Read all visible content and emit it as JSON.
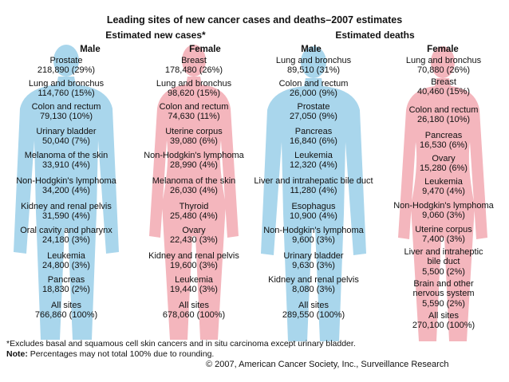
{
  "title": "Leading sites of new cancer cases and deaths–2007 estimates",
  "new_cases_heading": "Estimated new cases*",
  "deaths_heading": "Estimated deaths",
  "male_label": "Male",
  "female_label": "Female",
  "colors": {
    "male_figure": "#a9d6ec",
    "female_figure": "#f4b6bd"
  },
  "new_cases": {
    "male": [
      {
        "site": "Prostate",
        "value": "218,890 (29%)"
      },
      {
        "site": "Lung and bronchus",
        "value": "114,760 (15%)"
      },
      {
        "site": "Colon and rectum",
        "value": "79,130 (10%)"
      },
      {
        "site": "Urinary bladder",
        "value": "50,040 (7%)"
      },
      {
        "site": "Melanoma of the skin",
        "value": "33,910 (4%)"
      },
      {
        "site": "Non-Hodgkin's lymphoma",
        "value": "34,200 (4%)"
      },
      {
        "site": "Kidney and renal pelvis",
        "value": "31,590 (4%)"
      },
      {
        "site": "Oral cavity and pharynx",
        "value": "24,180 (3%)"
      },
      {
        "site": "Leukemia",
        "value": "24,800 (3%)"
      },
      {
        "site": "Pancreas",
        "value": "18,830 (2%)"
      },
      {
        "site": "All sites",
        "value": "766,860 (100%)"
      }
    ],
    "female": [
      {
        "site": "Breast",
        "value": "178,480 (26%)"
      },
      {
        "site": "Lung and bronchus",
        "value": "98,620 (15%)"
      },
      {
        "site": "Colon and rectum",
        "value": "74,630 (11%)"
      },
      {
        "site": "Uterine corpus",
        "value": "39,080 (6%)"
      },
      {
        "site": "Non-Hodgkin's lymphoma",
        "value": "28,990 (4%)"
      },
      {
        "site": "Melanoma of the skin",
        "value": "26,030 (4%)"
      },
      {
        "site": "Thyroid",
        "value": "25,480 (4%)"
      },
      {
        "site": "Ovary",
        "value": "22,430 (3%)"
      },
      {
        "site": "Kidney and renal pelvis",
        "value": "19,600 (3%)"
      },
      {
        "site": "Leukemia",
        "value": "19,440 (3%)"
      },
      {
        "site": "All sites",
        "value": "678,060 (100%)"
      }
    ]
  },
  "deaths": {
    "male": [
      {
        "site": "Lung and bronchus",
        "value": "89,510 (31%)"
      },
      {
        "site": "Colon and rectum",
        "value": "26,000 (9%)"
      },
      {
        "site": "Prostate",
        "value": "27,050 (9%)"
      },
      {
        "site": "Pancreas",
        "value": "16,840 (6%)"
      },
      {
        "site": "Leukemia",
        "value": "12,320 (4%)"
      },
      {
        "site": "Liver and intrahepatic bile duct",
        "value": "11,280 (4%)"
      },
      {
        "site": "Esophagus",
        "value": "10,900 (4%)"
      },
      {
        "site": "Non-Hodgkin's lymphoma",
        "value": "9,600 (3%)"
      },
      {
        "site": "Urinary bladder",
        "value": "9,630 (3%)"
      },
      {
        "site": "Kidney and renal pelvis",
        "value": "8,080 (3%)"
      },
      {
        "site": "All sites",
        "value": "289,550 (100%)"
      }
    ],
    "female": [
      {
        "site": "Lung and bronchus",
        "value": "70,880 (26%)"
      },
      {
        "site": "Breast",
        "value": "40,460 (15%)"
      },
      {
        "site": "Colon and rectum",
        "value": "26,180 (10%)"
      },
      {
        "site": "Pancreas",
        "value": "16,530 (6%)"
      },
      {
        "site": "Ovary",
        "value": "15,280 (6%)"
      },
      {
        "site": "Leukemia",
        "value": "9,470 (4%)"
      },
      {
        "site": "Non-Hodgkin's lymphoma",
        "value": "9,060 (3%)"
      },
      {
        "site": "Uterine corpus",
        "value": "7,400 (3%)"
      },
      {
        "site": "Liver and intraheptic bile duct",
        "value": "5,500 (2%)"
      },
      {
        "site": "Brain and other nervous system",
        "value": "5,590 (2%)"
      },
      {
        "site": "All sites",
        "value": "270,100 (100%)"
      }
    ]
  },
  "footnote": "*Excludes basal and squamous cell skin cancers and in situ carcinoma except urinary bladder.",
  "note_label": "Note:",
  "note_text": " Percentages may not total 100% due to rounding.",
  "copyright": "© 2007, American Cancer Society, Inc., Surveillance Research"
}
